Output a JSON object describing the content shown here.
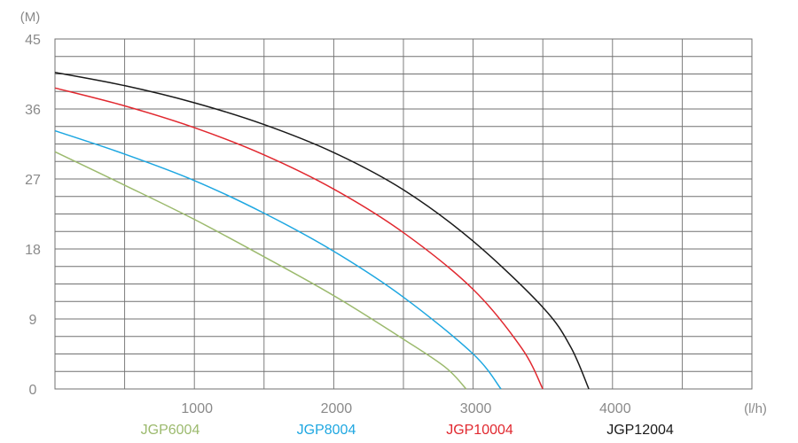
{
  "chart_data": {
    "type": "line",
    "ylabel": "(M)",
    "xlabel": "(l/h)",
    "xlim": [
      0,
      5000
    ],
    "ylim": [
      0,
      45
    ],
    "x_ticks": [
      "1000",
      "2000",
      "3000",
      "4000"
    ],
    "y_ticks": [
      "0",
      "9",
      "18",
      "27",
      "36",
      "45"
    ],
    "grid": true,
    "legend_position": "bottom",
    "series": [
      {
        "name": "JGP6004",
        "color": "#9cba6e",
        "x": [
          0,
          500,
          1000,
          1500,
          2000,
          2500,
          2800,
          2950
        ],
        "y": [
          30.5,
          26.2,
          21.8,
          17.0,
          12.0,
          6.4,
          2.8,
          0
        ]
      },
      {
        "name": "JGP8004",
        "color": "#1ea7e1",
        "x": [
          0,
          500,
          1000,
          1500,
          2000,
          2500,
          3000,
          3200
        ],
        "y": [
          33.2,
          30.2,
          26.8,
          22.6,
          17.7,
          11.8,
          4.5,
          0
        ]
      },
      {
        "name": "JGP10004",
        "color": "#e1282f",
        "x": [
          0,
          500,
          1000,
          1500,
          2000,
          2500,
          3000,
          3350,
          3500
        ],
        "y": [
          38.7,
          36.4,
          33.6,
          30.1,
          25.7,
          20.1,
          12.8,
          5.2,
          0
        ]
      },
      {
        "name": "JGP12004",
        "color": "#1a1a1a",
        "x": [
          0,
          500,
          1000,
          1500,
          2000,
          2500,
          3000,
          3500,
          3700,
          3830
        ],
        "y": [
          40.7,
          39.0,
          36.8,
          34.0,
          30.4,
          25.6,
          19.0,
          10.5,
          5.4,
          0
        ]
      }
    ]
  }
}
